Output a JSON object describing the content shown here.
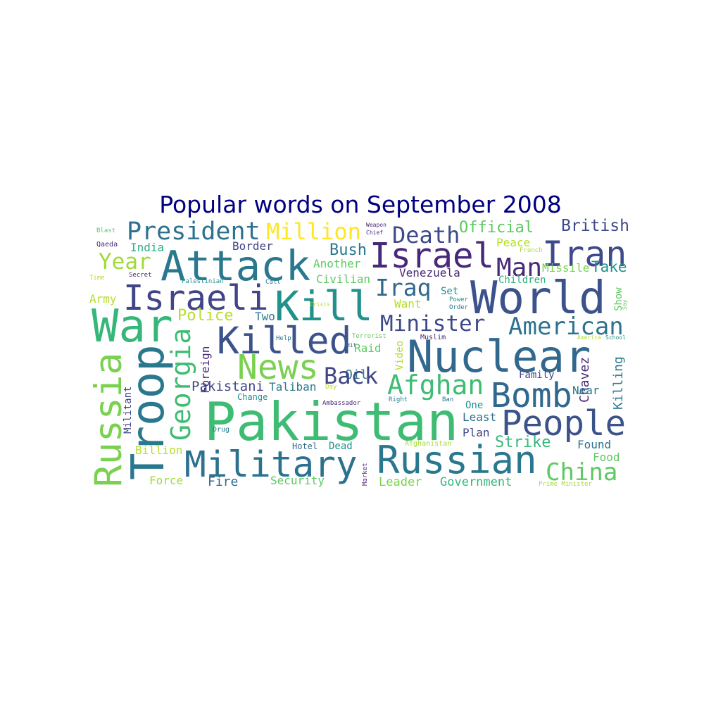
{
  "title": "Popular words on September 2008",
  "title_color": "#000080",
  "words": [
    {
      "text": "Pakistan",
      "color": "#3fbc73"
    },
    {
      "text": "Attack",
      "color": "#2a788e"
    },
    {
      "text": "Kill",
      "color": "#21918c"
    },
    {
      "text": "World",
      "color": "#3b528b"
    },
    {
      "text": "Nuclear",
      "color": "#31688e"
    },
    {
      "text": "Israel",
      "color": "#482878"
    },
    {
      "text": "Iran",
      "color": "#3e4a89"
    },
    {
      "text": "Israeli",
      "color": "#414487"
    },
    {
      "text": "Killed",
      "color": "#3b528b"
    },
    {
      "text": "War",
      "color": "#35b779"
    },
    {
      "text": "Russia",
      "color": "#7ad151"
    },
    {
      "text": "Troop",
      "color": "#2a788e"
    },
    {
      "text": "Georgia",
      "color": "#3fbc73"
    },
    {
      "text": "Military",
      "color": "#2c728e"
    },
    {
      "text": "Russian",
      "color": "#2a788e"
    },
    {
      "text": "People",
      "color": "#3b528b"
    },
    {
      "text": "Bomb",
      "color": "#31688e"
    },
    {
      "text": "News",
      "color": "#7ad151"
    },
    {
      "text": "President",
      "color": "#2c728e"
    },
    {
      "text": "Million",
      "color": "#fde725"
    },
    {
      "text": "Death",
      "color": "#3e4a89"
    },
    {
      "text": "Official",
      "color": "#5ec962"
    },
    {
      "text": "British",
      "color": "#3e4a89"
    },
    {
      "text": "Year",
      "color": "#a0da39"
    },
    {
      "text": "India",
      "color": "#29af7f"
    },
    {
      "text": "Border",
      "color": "#414487"
    },
    {
      "text": "Bush",
      "color": "#2a788e"
    },
    {
      "text": "Another",
      "color": "#5ec962"
    },
    {
      "text": "Man",
      "color": "#482878"
    },
    {
      "text": "Peace",
      "color": "#b5de2b"
    },
    {
      "text": "French",
      "color": "#a0da39"
    },
    {
      "text": "Missile",
      "color": "#7ad151"
    },
    {
      "text": "Take",
      "color": "#21918c"
    },
    {
      "text": "Children",
      "color": "#29af7f"
    },
    {
      "text": "Iraq",
      "color": "#31688e"
    },
    {
      "text": "Venezuela",
      "color": "#482878"
    },
    {
      "text": "Civilian",
      "color": "#5ec962"
    },
    {
      "text": "Set",
      "color": "#21918c"
    },
    {
      "text": "Want",
      "color": "#b5de2b"
    },
    {
      "text": "Power",
      "color": "#21918c"
    },
    {
      "text": "Order",
      "color": "#2a788e"
    },
    {
      "text": "Show",
      "color": "#5ec962"
    },
    {
      "text": "Say",
      "color": "#5ec962"
    },
    {
      "text": "Army",
      "color": "#b5de2b"
    },
    {
      "text": "Police",
      "color": "#b5de2b"
    },
    {
      "text": "Two",
      "color": "#2a788e"
    },
    {
      "text": "Minister",
      "color": "#3e4a89"
    },
    {
      "text": "American",
      "color": "#2c728e"
    },
    {
      "text": "Crisis",
      "color": "#b5de2b"
    },
    {
      "text": "Terrorist",
      "color": "#5ec962"
    },
    {
      "text": "Help",
      "color": "#2a788e"
    },
    {
      "text": "Hit",
      "color": "#31688e"
    },
    {
      "text": "Muslim",
      "color": "#482878"
    },
    {
      "text": "America",
      "color": "#b5de2b"
    },
    {
      "text": "School",
      "color": "#21918c"
    },
    {
      "text": "Raid",
      "color": "#5ec962"
    },
    {
      "text": "Video",
      "color": "#b5de2b"
    },
    {
      "text": "Oil",
      "color": "#2a788e"
    },
    {
      "text": "Back",
      "color": "#414487"
    },
    {
      "text": "Afghan",
      "color": "#3fbc73"
    },
    {
      "text": "Foreign",
      "color": "#482878"
    },
    {
      "text": "Pakistani",
      "color": "#414487"
    },
    {
      "text": "Taliban",
      "color": "#2a788e"
    },
    {
      "text": "Day",
      "color": "#b5de2b"
    },
    {
      "text": "Change",
      "color": "#21918c"
    },
    {
      "text": "Ambassador",
      "color": "#482878"
    },
    {
      "text": "Right",
      "color": "#2a788e"
    },
    {
      "text": "Ban",
      "color": "#2c728e"
    },
    {
      "text": "Chavez",
      "color": "#482878"
    },
    {
      "text": "Killing",
      "color": "#2a788e"
    },
    {
      "text": "Family",
      "color": "#414487"
    },
    {
      "text": "Near",
      "color": "#2a788e"
    },
    {
      "text": "One",
      "color": "#21918c"
    },
    {
      "text": "Militant",
      "color": "#414487"
    },
    {
      "text": "Least",
      "color": "#2c728e"
    },
    {
      "text": "Plan",
      "color": "#3e4a89"
    },
    {
      "text": "Drug",
      "color": "#2a788e"
    },
    {
      "text": "Strike",
      "color": "#35b779"
    },
    {
      "text": "Found",
      "color": "#2c728e"
    },
    {
      "text": "Food",
      "color": "#5ec962"
    },
    {
      "text": "China",
      "color": "#5ec962"
    },
    {
      "text": "Billion",
      "color": "#b5de2b"
    },
    {
      "text": "Hotel",
      "color": "#31688e"
    },
    {
      "text": "Dead",
      "color": "#21918c"
    },
    {
      "text": "Afghanistan",
      "color": "#a0da39"
    },
    {
      "text": "Market",
      "color": "#482878"
    },
    {
      "text": "Force",
      "color": "#a0da39"
    },
    {
      "text": "Fire",
      "color": "#31688e"
    },
    {
      "text": "Security",
      "color": "#5ec962"
    },
    {
      "text": "Leader",
      "color": "#7ad151"
    },
    {
      "text": "Government",
      "color": "#35b779"
    },
    {
      "text": "Prime Minister",
      "color": "#a0da39"
    },
    {
      "text": "Blast",
      "color": "#5ec962"
    },
    {
      "text": "Qaeda",
      "color": "#482878"
    },
    {
      "text": "Time",
      "color": "#b5de2b"
    },
    {
      "text": "Secret",
      "color": "#482878"
    },
    {
      "text": "Palestinian",
      "color": "#21918c"
    },
    {
      "text": "Call",
      "color": "#2a788e"
    },
    {
      "text": "Weapon",
      "color": "#482878"
    },
    {
      "text": "Chief",
      "color": "#482878"
    }
  ]
}
